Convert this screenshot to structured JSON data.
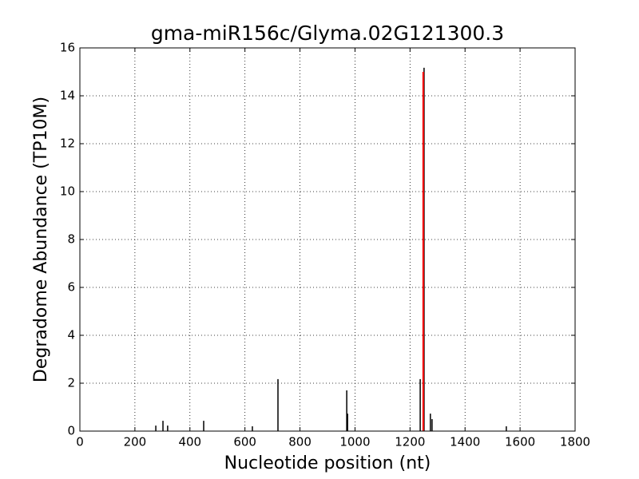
{
  "chart_data": {
    "type": "vlines",
    "title": "gma-miR156c/Glyma.02G121300.3",
    "x_label": "Nucleotide position (nt)",
    "y_label": "Degradome Abundance (TP10M)",
    "xlim": [
      0,
      1800
    ],
    "xticks": [
      0,
      200,
      400,
      600,
      800,
      1000,
      1200,
      1400,
      1600,
      1800
    ],
    "ylim": [
      0,
      16
    ],
    "yticks": [
      0,
      2,
      4,
      6,
      8,
      10,
      12,
      14,
      16
    ],
    "grid": true,
    "series": [
      {
        "color": "#000000",
        "x": [
          276,
          302,
          319,
          450,
          627,
          720,
          970,
          973,
          1237,
          1251,
          1274,
          1280,
          1550
        ],
        "values": [
          0.23,
          0.43,
          0.23,
          0.43,
          0.2,
          2.17,
          1.7,
          0.73,
          2.17,
          15.17,
          0.73,
          0.5,
          0.2
        ]
      },
      {
        "color": "#ff0000",
        "x": [
          1248
        ],
        "values": [
          15.0
        ]
      }
    ]
  }
}
